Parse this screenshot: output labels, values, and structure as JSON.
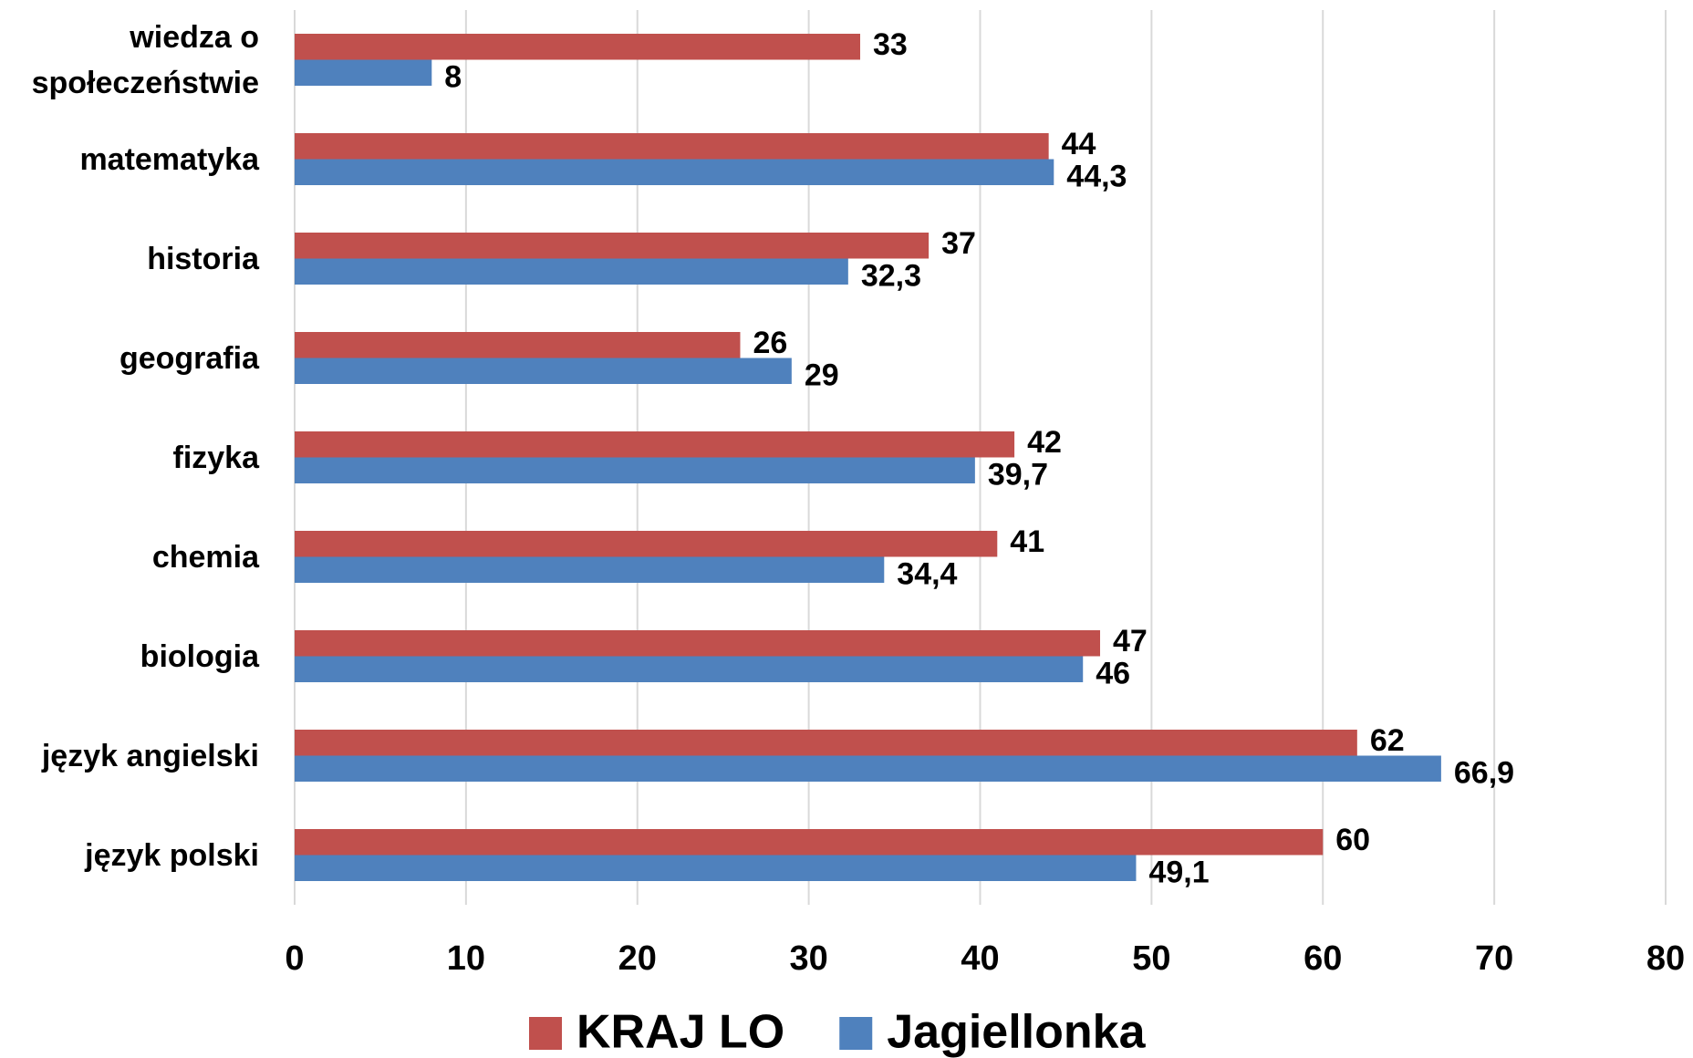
{
  "chart_data": {
    "type": "hbar",
    "categories": [
      "wiedza o społeczeństwie",
      "matematyka",
      "historia",
      "geografia",
      "fizyka",
      "chemia",
      "biologia",
      "język angielski",
      "język polski"
    ],
    "series": [
      {
        "name": "KRAJ LO",
        "color": "#c0504d",
        "values": [
          33,
          44,
          37,
          26,
          42,
          41,
          47,
          62,
          60
        ],
        "value_labels": [
          "33",
          "44",
          "37",
          "26",
          "42",
          "41",
          "47",
          "62",
          "60"
        ]
      },
      {
        "name": "Jagiellonka",
        "color": "#4f81bd",
        "values": [
          8,
          44.3,
          32.3,
          29,
          39.7,
          34.4,
          46,
          66.9,
          49.1
        ],
        "value_labels": [
          "8",
          "44,3",
          "32,3",
          "29",
          "39,7",
          "34,4",
          "46",
          "66,9",
          "49,1"
        ]
      }
    ],
    "xlim": [
      0,
      80
    ],
    "xticks": [
      0,
      10,
      20,
      30,
      40,
      50,
      60,
      70,
      80
    ],
    "grid": true,
    "legend": "bottom"
  }
}
